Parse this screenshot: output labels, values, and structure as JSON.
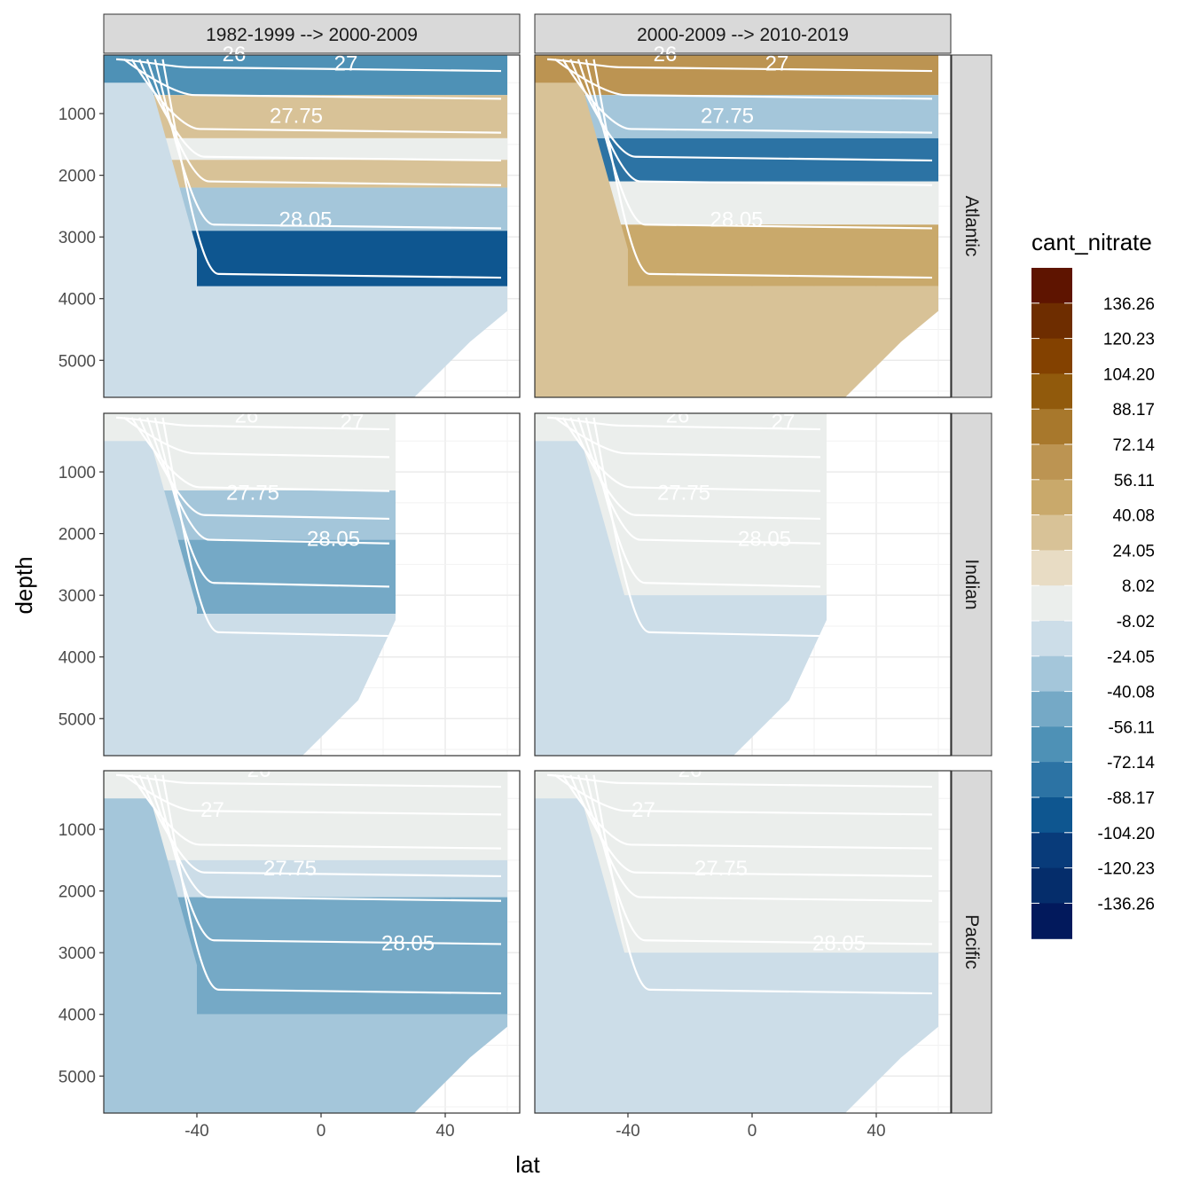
{
  "chart_data": {
    "type": "heatmap",
    "title": "",
    "xlabel": "lat",
    "ylabel": "depth",
    "xlim": [
      -70,
      64
    ],
    "ylim": [
      5600,
      50
    ],
    "x_ticks": [
      -40,
      0,
      40
    ],
    "y_ticks": [
      1000,
      2000,
      3000,
      4000,
      5000
    ],
    "y_reversed": true,
    "grid": true,
    "legend_position": "right",
    "columns": [
      "1982-1999 --> 2000-2009",
      "2000-2009 --> 2010-2019"
    ],
    "rows": [
      "Atlantic",
      "Indian",
      "Pacific"
    ],
    "legend": {
      "title": "cant_nitrate",
      "labels": [
        "136.26",
        "120.23",
        "104.20",
        "88.17",
        "72.14",
        "56.11",
        "40.08",
        "24.05",
        "8.02",
        "-8.02",
        "-24.05",
        "-40.08",
        "-56.11",
        "-72.14",
        "-88.17",
        "-104.20",
        "-120.23",
        "-136.26"
      ],
      "colors": [
        "#5e1400",
        "#6e2d00",
        "#834100",
        "#915a0c",
        "#a8782c",
        "#bc9452",
        "#c9a96b",
        "#d8c297",
        "#e8dcc4",
        "#ebeeec",
        "#ccdde8",
        "#a4c6da",
        "#75a9c6",
        "#4e91b6",
        "#2c73a4",
        "#0e5690",
        "#083b7a",
        "#052d6b",
        "#02195c"
      ]
    },
    "contour_labels": [
      "26",
      "27",
      "27.75",
      "28.05"
    ],
    "panels": [
      {
        "row": "Atlantic",
        "column": "1982-1999 --> 2000-2009",
        "bands": [
          {
            "depth_min": 50,
            "depth_max": 700,
            "value": -60
          },
          {
            "depth_min": 700,
            "depth_max": 1400,
            "value": 30
          },
          {
            "depth_min": 1400,
            "depth_max": 1750,
            "value": 0
          },
          {
            "depth_min": 1750,
            "depth_max": 2200,
            "value": 30
          },
          {
            "depth_min": 2200,
            "depth_max": 2900,
            "value": -35
          },
          {
            "depth_min": 2900,
            "depth_max": 3800,
            "value": -90
          },
          {
            "depth_min": 3800,
            "depth_max": 5600,
            "value": -15
          }
        ]
      },
      {
        "row": "Atlantic",
        "column": "2000-2009 --> 2010-2019",
        "bands": [
          {
            "depth_min": 50,
            "depth_max": 700,
            "value": 60
          },
          {
            "depth_min": 700,
            "depth_max": 1400,
            "value": -40
          },
          {
            "depth_min": 1400,
            "depth_max": 2100,
            "value": -75
          },
          {
            "depth_min": 2100,
            "depth_max": 2800,
            "value": 0
          },
          {
            "depth_min": 2800,
            "depth_max": 3800,
            "value": 45
          },
          {
            "depth_min": 3800,
            "depth_max": 5600,
            "value": 25
          }
        ]
      },
      {
        "row": "Indian",
        "column": "1982-1999 --> 2000-2009",
        "bands": [
          {
            "depth_min": 50,
            "depth_max": 1300,
            "value": 0
          },
          {
            "depth_min": 1300,
            "depth_max": 2100,
            "value": -30
          },
          {
            "depth_min": 2100,
            "depth_max": 3300,
            "value": -50
          },
          {
            "depth_min": 3300,
            "depth_max": 5600,
            "value": -20
          }
        ]
      },
      {
        "row": "Indian",
        "column": "2000-2009 --> 2010-2019",
        "bands": [
          {
            "depth_min": 50,
            "depth_max": 3000,
            "value": 0
          },
          {
            "depth_min": 3000,
            "depth_max": 5600,
            "value": -15
          }
        ]
      },
      {
        "row": "Pacific",
        "column": "1982-1999 --> 2000-2009",
        "bands": [
          {
            "depth_min": 50,
            "depth_max": 1500,
            "value": 0
          },
          {
            "depth_min": 1500,
            "depth_max": 2100,
            "value": -15
          },
          {
            "depth_min": 2100,
            "depth_max": 4000,
            "value": -50
          },
          {
            "depth_min": 4000,
            "depth_max": 5600,
            "value": -30
          }
        ]
      },
      {
        "row": "Pacific",
        "column": "2000-2009 --> 2010-2019",
        "bands": [
          {
            "depth_min": 50,
            "depth_max": 3000,
            "value": 0
          },
          {
            "depth_min": 3000,
            "depth_max": 5600,
            "value": -12
          }
        ]
      }
    ]
  }
}
